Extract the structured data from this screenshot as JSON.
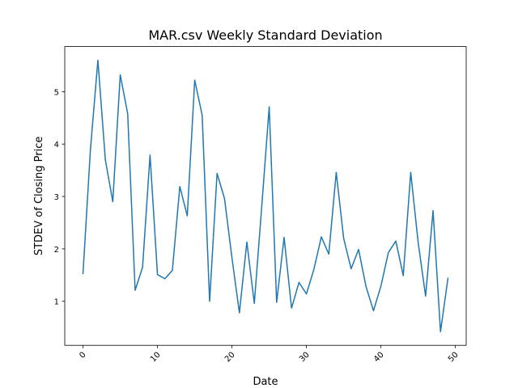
{
  "chart_data": {
    "type": "line",
    "title": "MAR.csv Weekly Standard Deviation",
    "xlabel": "Date",
    "ylabel": "STDEV of Closing Price",
    "xlim": [
      -2.45,
      51.45
    ],
    "ylim": [
      0.16,
      5.86
    ],
    "xticks": [
      0,
      10,
      20,
      30,
      40,
      50
    ],
    "yticks": [
      1,
      2,
      3,
      4,
      5
    ],
    "grid": false,
    "legend": "none",
    "line_color": "#1f77b4",
    "series": [
      {
        "x": [
          0,
          1,
          2,
          3,
          4,
          5,
          6,
          7,
          8,
          9,
          10,
          11,
          12,
          13,
          14,
          15,
          16,
          17,
          18,
          19,
          20,
          21,
          22,
          23,
          24,
          25,
          26,
          27,
          28,
          29,
          30,
          31,
          32,
          33,
          34,
          35,
          36,
          37,
          38,
          39,
          40,
          41,
          42,
          43,
          44,
          45,
          46,
          47,
          48,
          49
        ],
        "values": [
          1.53,
          3.9,
          5.6,
          3.7,
          2.9,
          5.32,
          4.58,
          1.21,
          1.65,
          3.79,
          1.51,
          1.43,
          1.59,
          3.19,
          2.63,
          5.22,
          4.55,
          1.0,
          3.44,
          2.96,
          1.83,
          0.78,
          2.13,
          0.96,
          2.81,
          4.71,
          0.98,
          2.22,
          0.87,
          1.36,
          1.14,
          1.61,
          2.23,
          1.9,
          3.46,
          2.2,
          1.62,
          1.99,
          1.28,
          0.82,
          1.29,
          1.93,
          2.15,
          1.49,
          3.46,
          2.12,
          1.1,
          2.73,
          0.42,
          1.44
        ]
      }
    ]
  }
}
